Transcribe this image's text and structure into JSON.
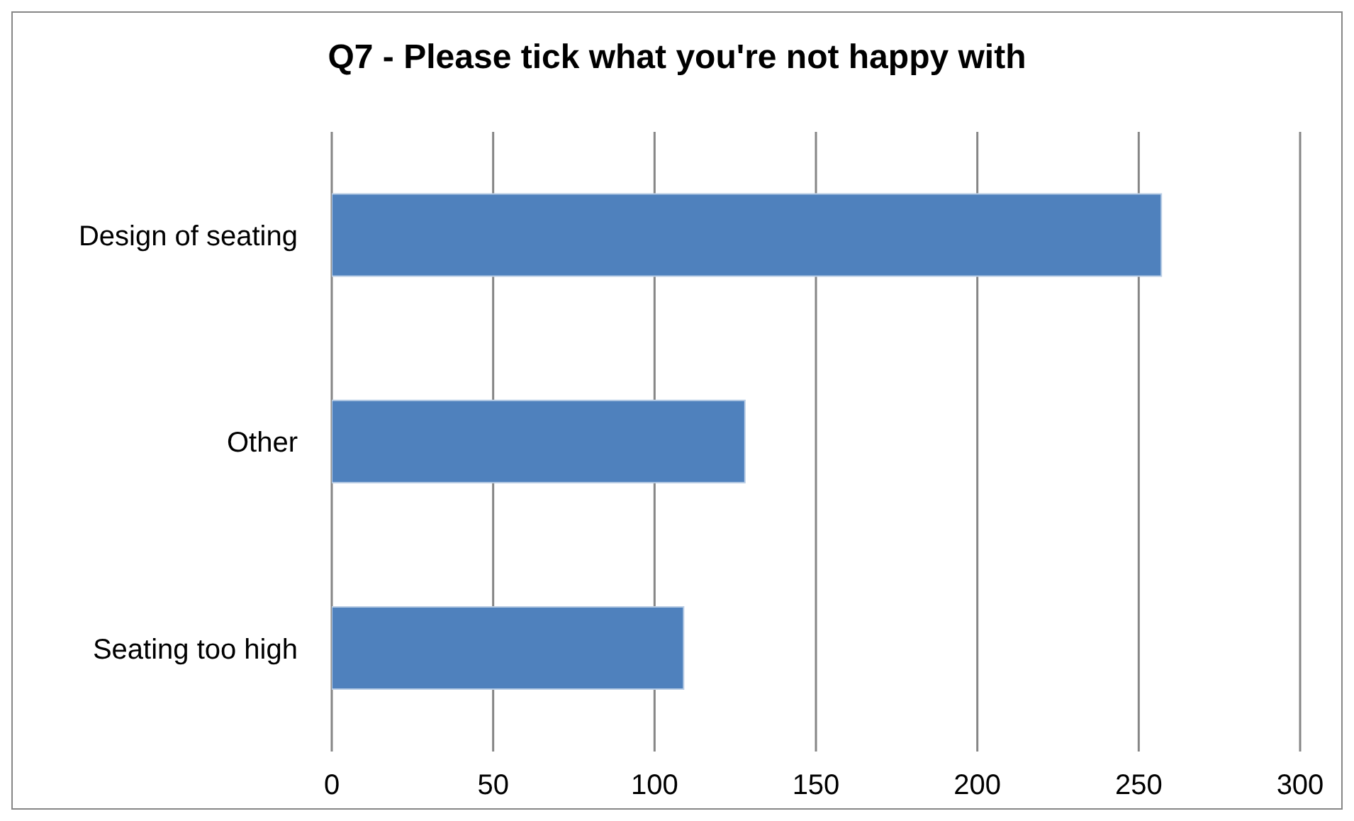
{
  "chart_data": {
    "type": "bar",
    "orientation": "horizontal",
    "title": "Q7 - Please tick what you're not happy with",
    "categories": [
      "Design of seating",
      "Other",
      "Seating too high"
    ],
    "values": [
      257,
      128,
      109
    ],
    "color": "#4f81bd",
    "xlim": [
      0,
      300
    ],
    "xticks": [
      0,
      50,
      100,
      150,
      200,
      250,
      300
    ],
    "grid": "x"
  }
}
